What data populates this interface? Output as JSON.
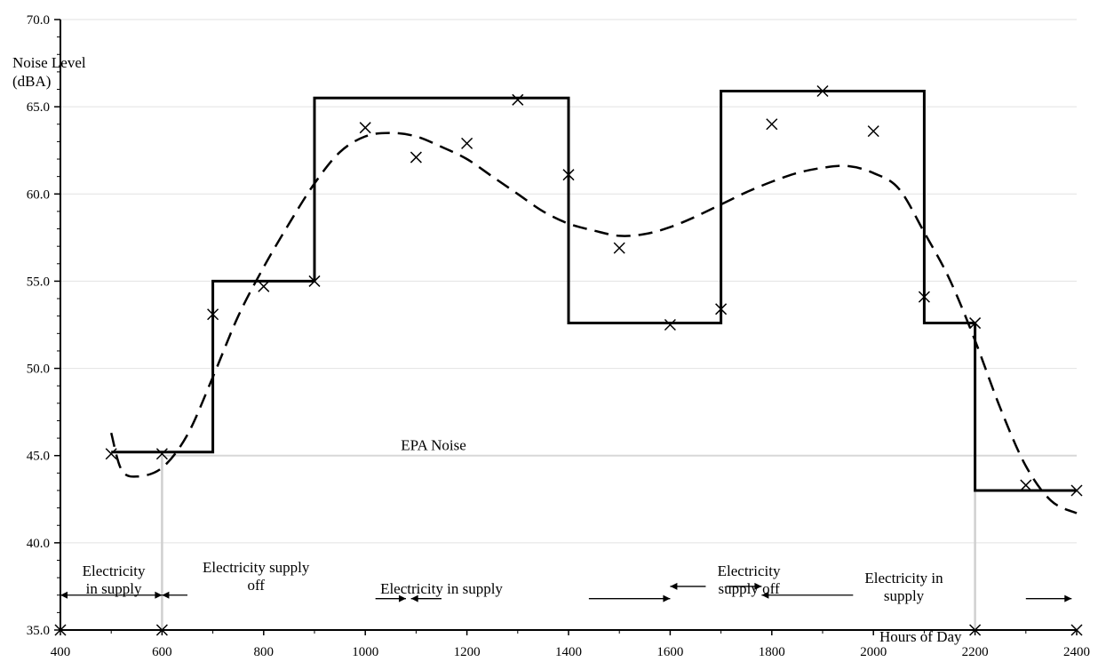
{
  "chart_data": {
    "type": "line",
    "title": "",
    "ylabel_lines": [
      "Noise Level",
      "(dBA)"
    ],
    "xlabel": "Hours of Day",
    "xlim": [
      400,
      2400
    ],
    "ylim": [
      35,
      70
    ],
    "x_ticks": [
      400,
      600,
      800,
      1000,
      1200,
      1400,
      1600,
      1800,
      2000,
      2200,
      2400
    ],
    "x_tick_labels": [
      "400",
      "600",
      "800",
      "1000",
      "1200",
      "1400",
      "1600",
      "1800",
      "2000",
      "2200",
      "2400"
    ],
    "y_ticks": [
      35,
      40,
      45,
      50,
      55,
      60,
      65,
      70
    ],
    "y_tick_labels": [
      "35.0",
      "40.0",
      "45.0",
      "50.0",
      "55.0",
      "60.0",
      "65.0",
      "70.0"
    ],
    "series": [
      {
        "style": "points-x",
        "x": [
          500,
          600,
          700,
          800,
          900,
          1000,
          1100,
          1200,
          1300,
          1400,
          1500,
          1600,
          1700,
          1800,
          1900,
          2000,
          2100,
          2200,
          2300,
          2400
        ],
        "y": [
          45.1,
          45.1,
          53.1,
          54.7,
          55.0,
          63.8,
          62.1,
          62.9,
          65.4,
          61.1,
          56.9,
          52.5,
          53.4,
          64.0,
          65.9,
          63.6,
          54.1,
          52.6,
          43.3,
          43.0
        ]
      },
      {
        "style": "step",
        "x": [
          500,
          700,
          700,
          900,
          900,
          1400,
          1400,
          1700,
          1700,
          2100,
          2100,
          2200,
          2200,
          2400
        ],
        "y": [
          45.2,
          45.2,
          55.0,
          55.0,
          65.5,
          65.5,
          52.6,
          52.6,
          65.9,
          65.9,
          52.6,
          52.6,
          43.0,
          43.0
        ]
      },
      {
        "style": "dashed-trend",
        "x": [
          500,
          520,
          550,
          600,
          650,
          700,
          750,
          800,
          850,
          900,
          950,
          1000,
          1050,
          1100,
          1150,
          1200,
          1250,
          1300,
          1350,
          1400,
          1450,
          1500,
          1550,
          1600,
          1650,
          1700,
          1750,
          1800,
          1850,
          1900,
          1950,
          2000,
          2050,
          2100,
          2150,
          2200,
          2250,
          2300,
          2350,
          2400
        ],
        "y": [
          46.3,
          44.2,
          43.8,
          44.3,
          46.2,
          49.5,
          53.0,
          55.8,
          58.3,
          60.6,
          62.4,
          63.3,
          63.5,
          63.3,
          62.7,
          62.0,
          61.0,
          60.0,
          59.0,
          58.3,
          57.9,
          57.6,
          57.7,
          58.1,
          58.7,
          59.4,
          60.1,
          60.7,
          61.2,
          61.5,
          61.6,
          61.2,
          60.3,
          57.8,
          55.1,
          51.6,
          47.7,
          44.4,
          42.4,
          41.7
        ]
      }
    ],
    "epa_limit": {
      "y": 45,
      "label": "EPA Noise",
      "label_x": 1070
    },
    "vertical_markers": [
      600,
      2200
    ],
    "bottom_markers": [
      400,
      600,
      2200,
      2400
    ],
    "annotations": [
      {
        "lines": [
          "Electricity",
          "in supply"
        ],
        "x": 505,
        "y": 38.1
      },
      {
        "lines": [
          "Electricity supply",
          "off"
        ],
        "x": 785,
        "y": 38.3
      },
      {
        "lines": [
          "Electricity in supply"
        ],
        "x": 1150,
        "y": 37.1
      },
      {
        "lines": [
          "Electricity",
          "supply off"
        ],
        "x": 1755,
        "y": 38.1
      },
      {
        "lines": [
          "Electricity in",
          "supply"
        ],
        "x": 2060,
        "y": 37.7
      }
    ],
    "arrows": [
      {
        "from": 400,
        "to": 600,
        "y": 37.0,
        "head": "both"
      },
      {
        "from": 600,
        "to": 650,
        "y": 37.0,
        "head": "start"
      },
      {
        "from": 1020,
        "to": 1080,
        "y": 36.8,
        "head": "end"
      },
      {
        "from": 1090,
        "to": 1150,
        "y": 36.8,
        "head": "start"
      },
      {
        "from": 1440,
        "to": 1600,
        "y": 36.8,
        "head": "end"
      },
      {
        "from": 1600,
        "to": 1670,
        "y": 37.5,
        "head": "start"
      },
      {
        "from": 1710,
        "to": 1780,
        "y": 37.5,
        "head": "end"
      },
      {
        "from": 1780,
        "to": 1960,
        "y": 37.0,
        "head": "start"
      },
      {
        "from": 2300,
        "to": 2390,
        "y": 36.8,
        "head": "end"
      }
    ]
  }
}
